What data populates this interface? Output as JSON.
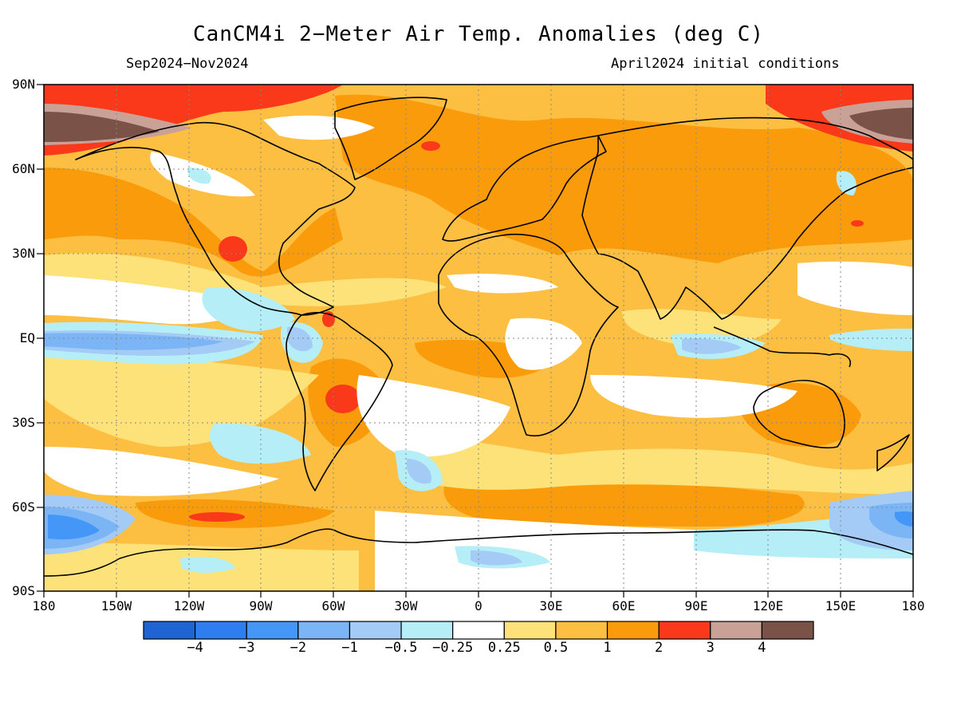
{
  "title": "CanCM4i 2−Meter Air Temp. Anomalies (deg C)",
  "subtitle_left": "Sep2024−Nov2024",
  "subtitle_right": "April2024 initial conditions",
  "lat_labels": [
    "90N",
    "60N",
    "30N",
    "EQ",
    "30S",
    "60S",
    "90S"
  ],
  "lon_labels": [
    "180",
    "150W",
    "120W",
    "90W",
    "60W",
    "30W",
    "0",
    "30E",
    "60E",
    "90E",
    "120E",
    "150E",
    "180"
  ],
  "colorbar": {
    "colors": [
      "#1f64d4",
      "#2f7ef0",
      "#4496f7",
      "#7cb5f6",
      "#a3cbf5",
      "#b5eef7",
      "#ffffff",
      "#fde27a",
      "#fcbf41",
      "#fa9b0c",
      "#f9391a",
      "#c9a196",
      "#7b5247"
    ],
    "labels": [
      "−4",
      "−3",
      "−2",
      "−1",
      "−0.5",
      "−0.25",
      "0.25",
      "0.5",
      "1",
      "2",
      "3",
      "4"
    ]
  }
}
